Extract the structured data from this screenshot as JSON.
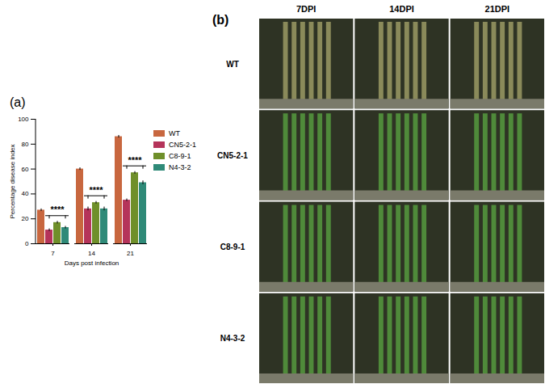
{
  "chart_data": {
    "type": "bar",
    "title": "(a)",
    "x_label": "Days post infection",
    "y_label": "Percentage disease index",
    "categories": [
      7,
      14,
      21
    ],
    "series": [
      {
        "name": "WT",
        "color": "#c8673f",
        "values": [
          27,
          60,
          86
        ],
        "errors": [
          1,
          1,
          1
        ]
      },
      {
        "name": "CN5-2-1",
        "color": "#b5345a",
        "values": [
          11,
          28,
          35
        ],
        "errors": [
          1,
          1.5,
          1
        ]
      },
      {
        "name": "C8-9-1",
        "color": "#6f8f2a",
        "values": [
          17,
          33,
          57
        ],
        "errors": [
          1,
          1,
          1
        ]
      },
      {
        "name": "N4-3-2",
        "color": "#2f8a78",
        "values": [
          13,
          28,
          49
        ],
        "errors": [
          1,
          1.5,
          1.5
        ]
      }
    ],
    "annotations": [
      {
        "text": "****",
        "category": 7,
        "series": [
          "CN5-2-1",
          "N4-3-2"
        ]
      },
      {
        "text": "****",
        "category": 14,
        "series": [
          "CN5-2-1",
          "N4-3-2"
        ]
      },
      {
        "text": "****",
        "category": 21,
        "series": [
          "CN5-2-1",
          "N4-3-2"
        ]
      }
    ],
    "ylim": [
      0,
      100
    ],
    "yticks": [
      0,
      20,
      40,
      60,
      80,
      100
    ],
    "grid": false,
    "legend": "right"
  },
  "panel_b": {
    "label": "(b)",
    "columns": [
      "7DPI",
      "14DPI",
      "21DPI"
    ],
    "rows": [
      "WT",
      "CN5-2-1",
      "C8-9-1",
      "N4-3-2"
    ]
  }
}
